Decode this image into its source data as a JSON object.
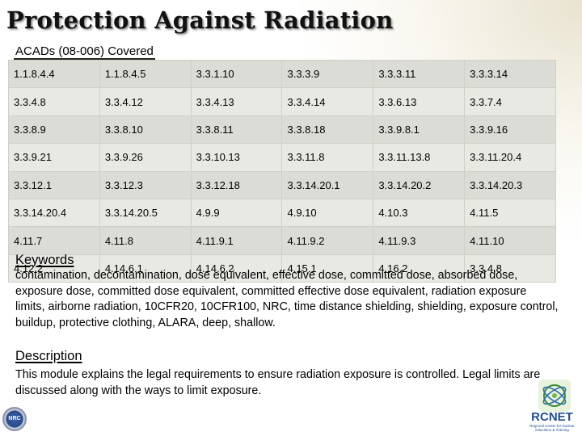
{
  "title": "Protection Against Radiation",
  "acads": {
    "label": "ACADs (08-006)  Covered",
    "rows": [
      [
        "1.1.8.4.4",
        "1.1.8.4.5",
        "3.3.1.10",
        "3.3.3.9",
        "3.3.3.11",
        "3.3.3.14"
      ],
      [
        "3.3.4.8",
        "3.3.4.12",
        "3.3.4.13",
        "3.3.4.14",
        "3.3.6.13",
        "3.3.7.4"
      ],
      [
        "3.3.8.9",
        "3.3.8.10",
        "3.3.8.11",
        "3.3.8.18",
        "3.3.9.8.1",
        "3.3.9.16"
      ],
      [
        "3.3.9.21",
        "3.3.9.26",
        "3.3.10.13",
        "3.3.11.8",
        "3.3.11.13.8",
        "3.3.11.20.4"
      ],
      [
        "3.3.12.1",
        "3.3.12.3",
        "3.3.12.18",
        "3.3.14.20.1",
        "3.3.14.20.2",
        "3.3.14.20.3"
      ],
      [
        "3.3.14.20.4",
        "3.3.14.20.5",
        "4.9.9",
        "4.9.10",
        "4.10.3",
        "4.11.5"
      ],
      [
        "4.11.7",
        "4.11.8",
        "4.11.9.1",
        "4.11.9.2",
        "4.11.9.3",
        "4.11.10"
      ],
      [
        "4.12.2",
        "4.14.6.1",
        "4.14.6.2",
        "4.15.1",
        "4.16.2",
        "3.3.4.8"
      ]
    ]
  },
  "keywords": {
    "heading": "Keywords",
    "text": "contamination, decontamination, dose equivalent, effective dose, committed dose, absorbed dose, exposure dose, committed dose equivalent, committed effective dose equivalent, radiation exposure limits, airborne radiation, 10CFR20, 10CFR100, NRC, time distance shielding, shielding, exposure control, buildup, protective clothing, ALARA, deep, shallow."
  },
  "description": {
    "heading": "Description",
    "text": "This module explains the legal requirements to ensure radiation exposure is controlled.  Legal limits are discussed along with the ways to limit exposure."
  },
  "logos": {
    "nrc_seal_text": "NRC",
    "rcnet_name": "RCNET",
    "rcnet_subtitle": "Regional Center for Nuclear Education & Training",
    "rcnet_color": "#1f4f8f"
  }
}
